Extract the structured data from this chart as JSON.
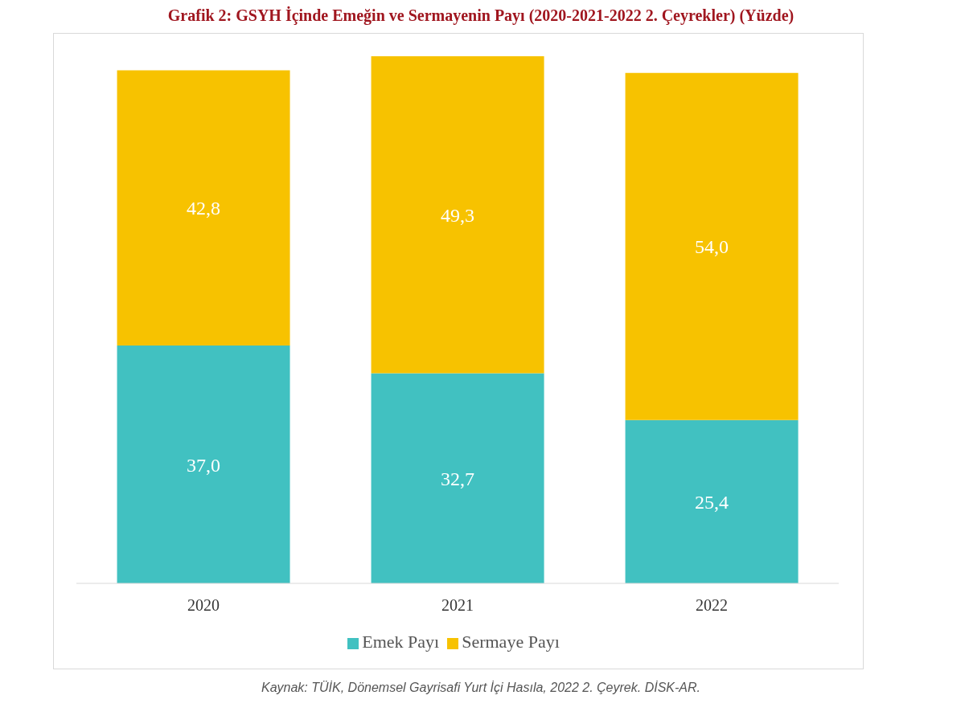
{
  "chart_data": {
    "type": "bar",
    "title": "Grafik 2: GSYH İçinde Emeğin ve Sermayenin Payı (2020-2021-2022 2. Çeyrekler) (Yüzde)",
    "categories": [
      "2020",
      "2021",
      "2022"
    ],
    "series": [
      {
        "name": "Emek Payı",
        "color": "#41c1c1",
        "values": [
          37.0,
          32.7,
          25.4
        ],
        "value_labels": [
          "37,0",
          "32,7",
          "25,4"
        ]
      },
      {
        "name": "Sermaye Payı",
        "color": "#f7c200",
        "values": [
          42.8,
          49.3,
          54.0
        ],
        "value_labels": [
          "42,8",
          "49,3",
          "54,0"
        ]
      }
    ],
    "stacked": true,
    "legend": "bottom",
    "tick_labels": "x",
    "annotations": [
      "Kaynak: TÜİK, Dönemsel Gayrisafi Yurt İçi Hasıla, 2022 2. Çeyrek. DİSK-AR."
    ]
  }
}
